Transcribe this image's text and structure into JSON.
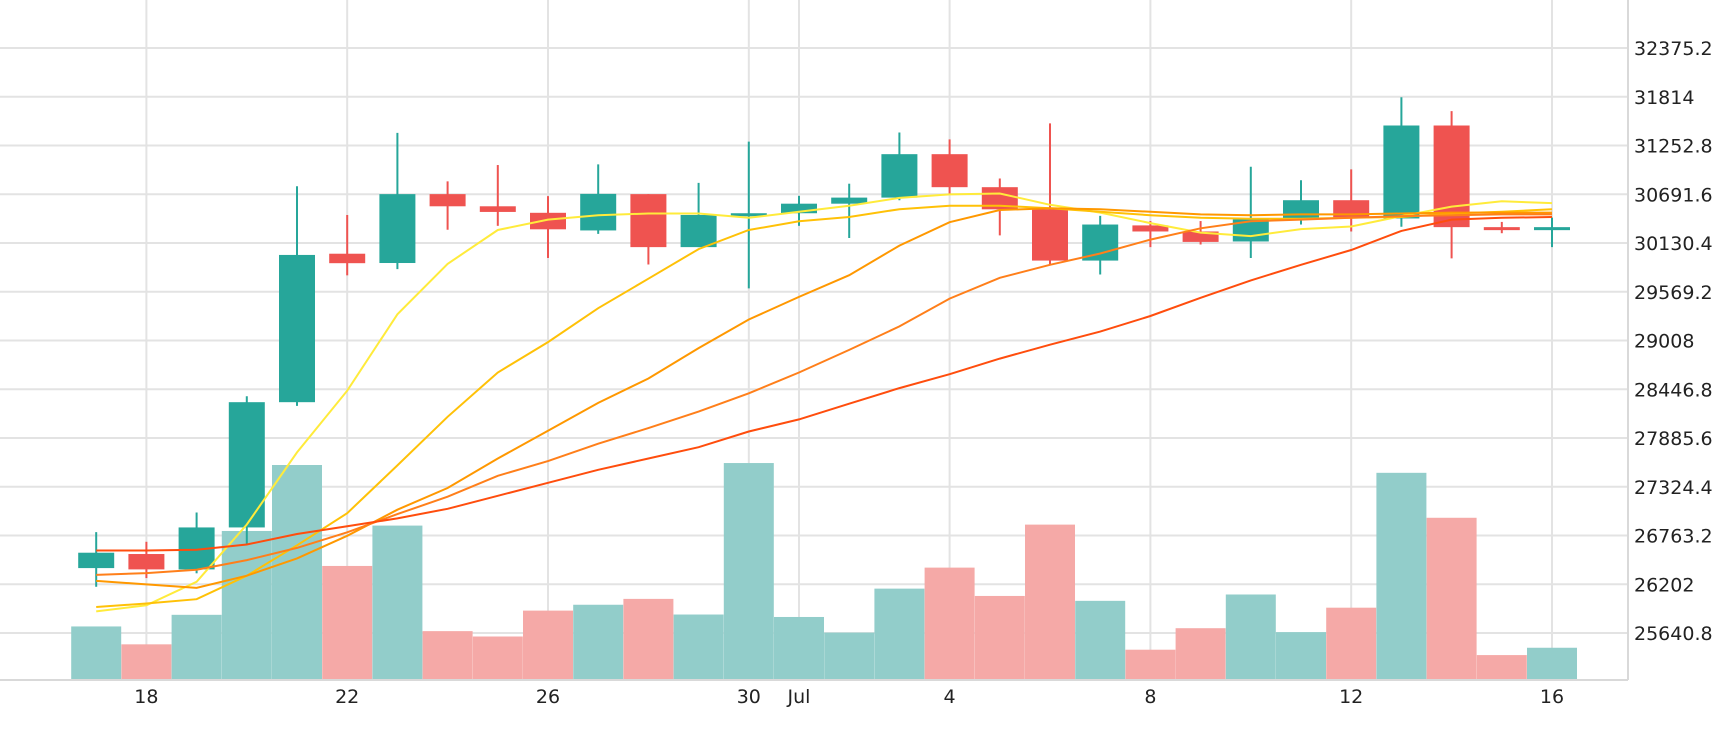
{
  "chart_data": {
    "type": "candlestick",
    "x_ticks": [
      {
        "day": 2,
        "label": "18"
      },
      {
        "day": 6,
        "label": "22"
      },
      {
        "day": 10,
        "label": "26"
      },
      {
        "day": 14,
        "label": "30"
      },
      {
        "day": 15,
        "label": "Jul"
      },
      {
        "day": 18,
        "label": "4"
      },
      {
        "day": 22,
        "label": "8"
      },
      {
        "day": 26,
        "label": "12"
      },
      {
        "day": 30,
        "label": "16"
      }
    ],
    "y_ticks": [
      25640.8,
      26202,
      26763.2,
      27324.4,
      27885.6,
      28446.8,
      29008,
      29569.2,
      30130.4,
      30691.6,
      31252.8,
      31814,
      32375.2
    ],
    "ylim": [
      25100,
      32750
    ],
    "grid": true,
    "colors": {
      "up": "#26a69a",
      "down": "#ef5350",
      "volume_up": "#92cdca",
      "volume_down": "#f5a9a7",
      "grid": "#e3e3e3",
      "ma": [
        "#ffeb3b",
        "#ffc107",
        "#ff9800",
        "#ff7f1a",
        "#ff4d0d"
      ]
    },
    "candles": [
      {
        "day": 1,
        "open": 26388,
        "high": 26802,
        "low": 26173,
        "close": 26565
      },
      {
        "day": 2,
        "open": 26550,
        "high": 26691,
        "low": 26273,
        "close": 26373
      },
      {
        "day": 3,
        "open": 26373,
        "high": 27028,
        "low": 26328,
        "close": 26856
      },
      {
        "day": 4,
        "open": 26856,
        "high": 28366,
        "low": 26658,
        "close": 28298
      },
      {
        "day": 5,
        "open": 28298,
        "high": 30783,
        "low": 28255,
        "close": 29993
      },
      {
        "day": 6,
        "open": 30007,
        "high": 30453,
        "low": 29758,
        "close": 29898
      },
      {
        "day": 7,
        "open": 29900,
        "high": 31398,
        "low": 29830,
        "close": 30693
      },
      {
        "day": 8,
        "open": 30693,
        "high": 30840,
        "low": 30283,
        "close": 30553
      },
      {
        "day": 9,
        "open": 30553,
        "high": 31028,
        "low": 30328,
        "close": 30488
      },
      {
        "day": 10,
        "open": 30478,
        "high": 30670,
        "low": 29958,
        "close": 30288
      },
      {
        "day": 11,
        "open": 30275,
        "high": 31035,
        "low": 30235,
        "close": 30696
      },
      {
        "day": 12,
        "open": 30693,
        "high": 30693,
        "low": 29883,
        "close": 30083
      },
      {
        "day": 13,
        "open": 30083,
        "high": 30823,
        "low": 30083,
        "close": 30453
      },
      {
        "day": 14,
        "open": 30453,
        "high": 31298,
        "low": 29608,
        "close": 30473
      },
      {
        "day": 15,
        "open": 30473,
        "high": 30673,
        "low": 30328,
        "close": 30583
      },
      {
        "day": 16,
        "open": 30583,
        "high": 30813,
        "low": 30188,
        "close": 30653
      },
      {
        "day": 17,
        "open": 30653,
        "high": 31403,
        "low": 30623,
        "close": 31153
      },
      {
        "day": 18,
        "open": 31153,
        "high": 31323,
        "low": 30693,
        "close": 30773
      },
      {
        "day": 19,
        "open": 30773,
        "high": 30873,
        "low": 30218,
        "close": 30518
      },
      {
        "day": 20,
        "open": 30518,
        "high": 31508,
        "low": 29883,
        "close": 29928
      },
      {
        "day": 21,
        "open": 29928,
        "high": 30443,
        "low": 29768,
        "close": 30343
      },
      {
        "day": 22,
        "open": 30333,
        "high": 30383,
        "low": 30083,
        "close": 30263
      },
      {
        "day": 23,
        "open": 30263,
        "high": 30383,
        "low": 30113,
        "close": 30143
      },
      {
        "day": 24,
        "open": 30148,
        "high": 31008,
        "low": 29958,
        "close": 30403
      },
      {
        "day": 25,
        "open": 30403,
        "high": 30853,
        "low": 30343,
        "close": 30623
      },
      {
        "day": 26,
        "open": 30623,
        "high": 30978,
        "low": 30263,
        "close": 30413
      },
      {
        "day": 27,
        "open": 30413,
        "high": 31808,
        "low": 30318,
        "close": 31483
      },
      {
        "day": 28,
        "open": 31483,
        "high": 31648,
        "low": 29953,
        "close": 30313
      },
      {
        "day": 29,
        "open": 30313,
        "high": 30373,
        "low": 30243,
        "close": 30283
      },
      {
        "day": 30,
        "open": 30283,
        "high": 30423,
        "low": 30083,
        "close": 30313
      }
    ],
    "volume_range": [
      0,
      2200
    ],
    "volumes": [
      {
        "day": 1,
        "value": 548,
        "direction": "up"
      },
      {
        "day": 2,
        "value": 365,
        "direction": "down"
      },
      {
        "day": 3,
        "value": 667,
        "direction": "up"
      },
      {
        "day": 4,
        "value": 1525,
        "direction": "up"
      },
      {
        "day": 5,
        "value": 2200,
        "direction": "up"
      },
      {
        "day": 6,
        "value": 1167,
        "direction": "down"
      },
      {
        "day": 7,
        "value": 1580,
        "direction": "up"
      },
      {
        "day": 8,
        "value": 500,
        "direction": "down"
      },
      {
        "day": 9,
        "value": 445,
        "direction": "down"
      },
      {
        "day": 10,
        "value": 710,
        "direction": "down"
      },
      {
        "day": 11,
        "value": 770,
        "direction": "up"
      },
      {
        "day": 12,
        "value": 830,
        "direction": "down"
      },
      {
        "day": 13,
        "value": 670,
        "direction": "up"
      },
      {
        "day": 14,
        "value": 2220,
        "direction": "up"
      },
      {
        "day": 15,
        "value": 645,
        "direction": "up"
      },
      {
        "day": 16,
        "value": 485,
        "direction": "up"
      },
      {
        "day": 17,
        "value": 935,
        "direction": "up"
      },
      {
        "day": 18,
        "value": 1150,
        "direction": "down"
      },
      {
        "day": 19,
        "value": 860,
        "direction": "down"
      },
      {
        "day": 20,
        "value": 1590,
        "direction": "down"
      },
      {
        "day": 21,
        "value": 810,
        "direction": "up"
      },
      {
        "day": 22,
        "value": 310,
        "direction": "down"
      },
      {
        "day": 23,
        "value": 530,
        "direction": "down"
      },
      {
        "day": 24,
        "value": 875,
        "direction": "up"
      },
      {
        "day": 25,
        "value": 490,
        "direction": "up"
      },
      {
        "day": 26,
        "value": 740,
        "direction": "down"
      },
      {
        "day": 27,
        "value": 2120,
        "direction": "up"
      },
      {
        "day": 28,
        "value": 1660,
        "direction": "down"
      },
      {
        "day": 29,
        "value": 255,
        "direction": "down"
      },
      {
        "day": 30,
        "value": 330,
        "direction": "up"
      }
    ],
    "moving_averages": [
      {
        "points": [
          [
            1,
            25890
          ],
          [
            2,
            25960
          ],
          [
            3,
            26230
          ],
          [
            4,
            26890
          ],
          [
            5,
            27720
          ],
          [
            6,
            28430
          ],
          [
            7,
            29310
          ],
          [
            8,
            29890
          ],
          [
            9,
            30280
          ],
          [
            10,
            30400
          ],
          [
            11,
            30450
          ],
          [
            12,
            30470
          ],
          [
            13,
            30470
          ],
          [
            14,
            30420
          ],
          [
            15,
            30490
          ],
          [
            16,
            30560
          ],
          [
            17,
            30650
          ],
          [
            18,
            30690
          ],
          [
            19,
            30700
          ],
          [
            20,
            30570
          ],
          [
            21,
            30480
          ],
          [
            22,
            30360
          ],
          [
            23,
            30250
          ],
          [
            24,
            30210
          ],
          [
            25,
            30290
          ],
          [
            26,
            30320
          ],
          [
            27,
            30440
          ],
          [
            28,
            30550
          ],
          [
            29,
            30610
          ],
          [
            30,
            30590
          ]
        ]
      },
      {
        "points": [
          [
            1,
            25940
          ],
          [
            2,
            25980
          ],
          [
            3,
            26030
          ],
          [
            4,
            26300
          ],
          [
            5,
            26650
          ],
          [
            6,
            27020
          ],
          [
            7,
            27570
          ],
          [
            8,
            28130
          ],
          [
            9,
            28640
          ],
          [
            10,
            28990
          ],
          [
            11,
            29380
          ],
          [
            12,
            29720
          ],
          [
            13,
            30060
          ],
          [
            14,
            30280
          ],
          [
            15,
            30380
          ],
          [
            16,
            30430
          ],
          [
            17,
            30520
          ],
          [
            18,
            30560
          ],
          [
            19,
            30560
          ],
          [
            20,
            30530
          ],
          [
            21,
            30490
          ],
          [
            22,
            30450
          ],
          [
            23,
            30420
          ],
          [
            24,
            30410
          ],
          [
            25,
            30410
          ],
          [
            26,
            30420
          ],
          [
            27,
            30430
          ],
          [
            28,
            30470
          ],
          [
            29,
            30490
          ],
          [
            30,
            30520
          ]
        ]
      },
      {
        "points": [
          [
            1,
            26240
          ],
          [
            2,
            26200
          ],
          [
            3,
            26160
          ],
          [
            4,
            26300
          ],
          [
            5,
            26500
          ],
          [
            6,
            26760
          ],
          [
            7,
            27060
          ],
          [
            8,
            27310
          ],
          [
            9,
            27650
          ],
          [
            10,
            27970
          ],
          [
            11,
            28290
          ],
          [
            12,
            28570
          ],
          [
            13,
            28920
          ],
          [
            14,
            29250
          ],
          [
            15,
            29510
          ],
          [
            16,
            29760
          ],
          [
            17,
            30100
          ],
          [
            18,
            30370
          ],
          [
            19,
            30510
          ],
          [
            20,
            30530
          ],
          [
            21,
            30520
          ],
          [
            22,
            30490
          ],
          [
            23,
            30460
          ],
          [
            24,
            30450
          ],
          [
            25,
            30460
          ],
          [
            26,
            30460
          ],
          [
            27,
            30470
          ],
          [
            28,
            30480
          ],
          [
            29,
            30480
          ],
          [
            30,
            30480
          ]
        ]
      },
      {
        "points": [
          [
            1,
            26310
          ],
          [
            2,
            26330
          ],
          [
            3,
            26370
          ],
          [
            4,
            26480
          ],
          [
            5,
            26620
          ],
          [
            6,
            26800
          ],
          [
            7,
            27010
          ],
          [
            8,
            27210
          ],
          [
            9,
            27450
          ],
          [
            10,
            27620
          ],
          [
            11,
            27820
          ],
          [
            12,
            28000
          ],
          [
            13,
            28190
          ],
          [
            14,
            28400
          ],
          [
            15,
            28640
          ],
          [
            16,
            28900
          ],
          [
            17,
            29170
          ],
          [
            18,
            29490
          ],
          [
            19,
            29730
          ],
          [
            20,
            29880
          ],
          [
            21,
            30010
          ],
          [
            22,
            30170
          ],
          [
            23,
            30300
          ],
          [
            24,
            30380
          ],
          [
            25,
            30400
          ],
          [
            26,
            30420
          ],
          [
            27,
            30440
          ],
          [
            28,
            30450
          ],
          [
            29,
            30460
          ],
          [
            30,
            30460
          ]
        ]
      },
      {
        "points": [
          [
            1,
            26590
          ],
          [
            2,
            26590
          ],
          [
            3,
            26600
          ],
          [
            4,
            26660
          ],
          [
            5,
            26780
          ],
          [
            6,
            26870
          ],
          [
            7,
            26960
          ],
          [
            8,
            27070
          ],
          [
            9,
            27220
          ],
          [
            10,
            27370
          ],
          [
            11,
            27520
          ],
          [
            12,
            27650
          ],
          [
            13,
            27780
          ],
          [
            14,
            27960
          ],
          [
            15,
            28100
          ],
          [
            16,
            28280
          ],
          [
            17,
            28460
          ],
          [
            18,
            28620
          ],
          [
            19,
            28800
          ],
          [
            20,
            28960
          ],
          [
            21,
            29110
          ],
          [
            22,
            29290
          ],
          [
            23,
            29500
          ],
          [
            24,
            29700
          ],
          [
            25,
            29880
          ],
          [
            26,
            30050
          ],
          [
            27,
            30270
          ],
          [
            28,
            30400
          ],
          [
            29,
            30420
          ],
          [
            30,
            30430
          ]
        ]
      }
    ]
  }
}
